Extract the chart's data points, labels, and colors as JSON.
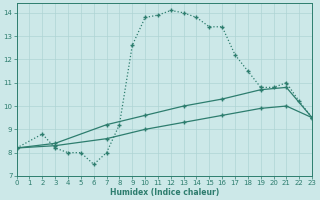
{
  "line1_x": [
    0,
    2,
    3,
    4,
    5,
    6,
    7,
    8,
    9,
    10,
    11,
    12,
    13,
    14,
    15,
    16,
    17,
    18,
    19,
    20,
    21,
    22,
    23
  ],
  "line1_y": [
    8.2,
    8.8,
    8.2,
    8.0,
    8.0,
    7.5,
    8.0,
    9.2,
    12.6,
    13.8,
    13.9,
    14.1,
    14.0,
    13.8,
    13.4,
    13.4,
    12.2,
    11.5,
    10.8,
    10.8,
    11.0,
    10.2,
    9.5
  ],
  "line2_x": [
    0,
    3,
    7,
    10,
    13,
    16,
    19,
    21,
    23
  ],
  "line2_y": [
    8.2,
    8.4,
    9.2,
    9.6,
    10.0,
    10.3,
    10.7,
    10.8,
    9.5
  ],
  "line3_x": [
    0,
    3,
    7,
    10,
    13,
    16,
    19,
    21,
    23
  ],
  "line3_y": [
    8.2,
    8.3,
    8.6,
    9.0,
    9.3,
    9.6,
    9.9,
    10.0,
    9.5
  ],
  "color": "#2d7d6e",
  "bg_color": "#cce8e8",
  "grid_color": "#afd4d4",
  "xlabel": "Humidex (Indice chaleur)",
  "xlim": [
    0,
    23
  ],
  "ylim": [
    7,
    14.4
  ],
  "yticks": [
    7,
    8,
    9,
    10,
    11,
    12,
    13,
    14
  ],
  "xticks": [
    0,
    1,
    2,
    3,
    4,
    5,
    6,
    7,
    8,
    9,
    10,
    11,
    12,
    13,
    14,
    15,
    16,
    17,
    18,
    19,
    20,
    21,
    22,
    23
  ]
}
